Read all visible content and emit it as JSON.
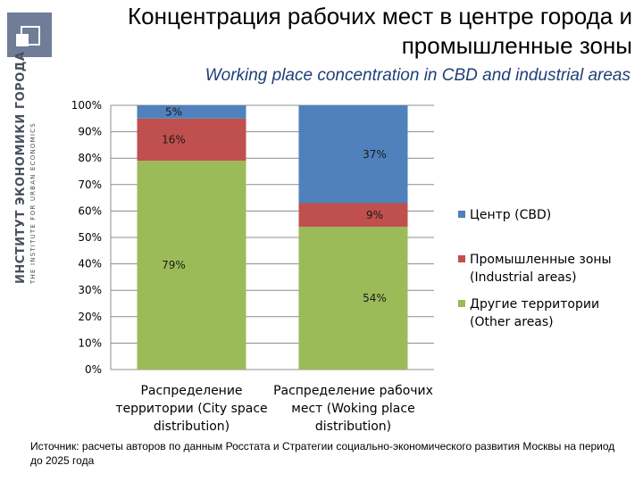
{
  "title": "Концентрация рабочих мест в центре города и промышленные зоны",
  "subtitle": "Working place concentration in CBD and industrial areas",
  "logo": {
    "line1": "ИНСТИТУТ ЭКОНОМИКИ ГОРОДА",
    "line2": "THE INSTITUTE FOR URBAN ECONOMICS"
  },
  "source": "Источник: расчеты авторов по данным Росстата и Стратегии социально-экономического развития Москвы на период до 2025 года",
  "colors": {
    "center": "#4f81bd",
    "industrial": "#c0504d",
    "other": "#9bbb59"
  },
  "chart_data": {
    "type": "bar",
    "stacked": true,
    "categories": [
      [
        "Распределение",
        "территории (City space",
        "distribution)"
      ],
      [
        "Распределение рабочих",
        "мест (Woking place",
        "distribution)"
      ]
    ],
    "series": [
      {
        "name": "Другие территории (Other areas)",
        "legend_lines": [
          "Другие территории",
          "(Other areas)"
        ],
        "values": [
          79,
          54
        ],
        "labels": [
          "79%",
          "54%"
        ],
        "color": "#9bbb59"
      },
      {
        "name": "Промышленные зоны (Industrial areas)",
        "legend_lines": [
          "Промышленные зоны",
          "(Industrial areas)"
        ],
        "values": [
          16,
          9
        ],
        "labels": [
          "16%",
          "9%"
        ],
        "color": "#c0504d"
      },
      {
        "name": "Центр (CBD)",
        "legend_lines": [
          "Центр (CBD)"
        ],
        "values": [
          5,
          37
        ],
        "labels": [
          "5%",
          "37%"
        ],
        "color": "#4f81bd"
      }
    ],
    "legend_order": [
      2,
      1,
      0
    ],
    "y_ticks": [
      "0%",
      "10%",
      "20%",
      "30%",
      "40%",
      "50%",
      "60%",
      "70%",
      "80%",
      "90%",
      "100%"
    ],
    "ylim": [
      0,
      100
    ],
    "grid": true,
    "legend_position": "right"
  }
}
